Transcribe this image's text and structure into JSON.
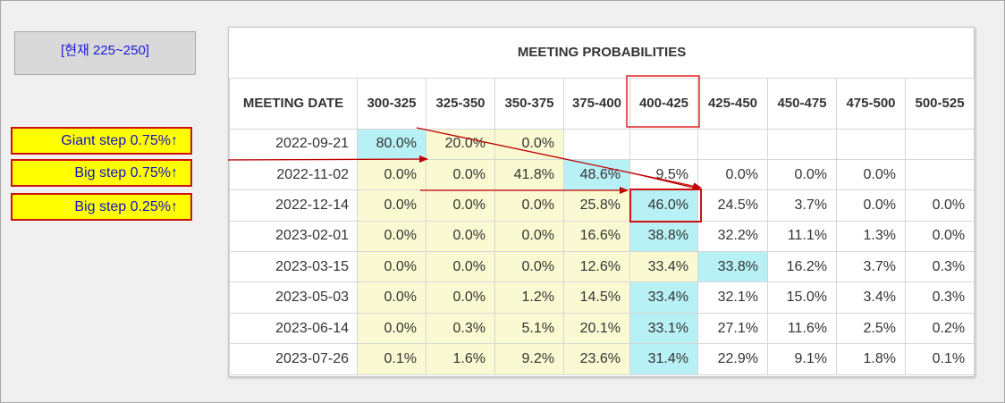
{
  "current_range": "[현재 225~250]",
  "step_labels": {
    "giant": "Giant step 0.75%↑",
    "big75": "Big step 0.75%↑",
    "big25": "Big step 0.25%↑"
  },
  "colors": {
    "highlight_cell": "#b7f0f5",
    "tinted_cell": "#fafad2",
    "annotation": "#d01010",
    "label_fill": "#ffff00"
  },
  "chart_data": {
    "type": "table",
    "title": "MEETING PROBABILITIES",
    "columns": [
      "MEETING DATE",
      "300-325",
      "325-350",
      "350-375",
      "375-400",
      "400-425",
      "425-450",
      "450-475",
      "475-500",
      "500-525"
    ],
    "rows": [
      [
        "2022-09-21",
        "80.0%",
        "20.0%",
        "0.0%",
        "",
        "",
        "",
        "",
        "",
        ""
      ],
      [
        "2022-11-02",
        "0.0%",
        "0.0%",
        "41.8%",
        "48.6%",
        "9.5%",
        "0.0%",
        "0.0%",
        "0.0%",
        ""
      ],
      [
        "2022-12-14",
        "0.0%",
        "0.0%",
        "0.0%",
        "25.8%",
        "46.0%",
        "24.5%",
        "3.7%",
        "0.0%",
        "0.0%"
      ],
      [
        "2023-02-01",
        "0.0%",
        "0.0%",
        "0.0%",
        "16.6%",
        "38.8%",
        "32.2%",
        "11.1%",
        "1.3%",
        "0.0%"
      ],
      [
        "2023-03-15",
        "0.0%",
        "0.0%",
        "0.0%",
        "12.6%",
        "33.4%",
        "33.8%",
        "16.2%",
        "3.7%",
        "0.3%"
      ],
      [
        "2023-05-03",
        "0.0%",
        "0.0%",
        "1.2%",
        "14.5%",
        "33.4%",
        "32.1%",
        "15.0%",
        "3.4%",
        "0.3%"
      ],
      [
        "2023-06-14",
        "0.0%",
        "0.3%",
        "5.1%",
        "20.1%",
        "33.1%",
        "27.1%",
        "11.6%",
        "2.5%",
        "0.2%"
      ],
      [
        "2023-07-26",
        "0.1%",
        "1.6%",
        "9.2%",
        "23.6%",
        "31.4%",
        "22.9%",
        "9.1%",
        "1.8%",
        "0.1%"
      ]
    ],
    "cell_style": [
      [
        "h",
        "y",
        "y",
        "",
        "",
        "",
        "",
        "",
        ""
      ],
      [
        "y",
        "y",
        "y",
        "h",
        "",
        "",
        "",
        "",
        ""
      ],
      [
        "y",
        "y",
        "y",
        "y",
        "h",
        "",
        "",
        "",
        ""
      ],
      [
        "y",
        "y",
        "y",
        "y",
        "h",
        "",
        "",
        "",
        ""
      ],
      [
        "y",
        "y",
        "y",
        "y",
        "y",
        "h",
        "",
        "",
        ""
      ],
      [
        "y",
        "y",
        "y",
        "y",
        "h",
        "",
        "",
        "",
        ""
      ],
      [
        "y",
        "y",
        "y",
        "y",
        "h",
        "",
        "",
        "",
        ""
      ],
      [
        "y",
        "y",
        "y",
        "y",
        "h",
        "",
        "",
        "",
        ""
      ]
    ]
  }
}
